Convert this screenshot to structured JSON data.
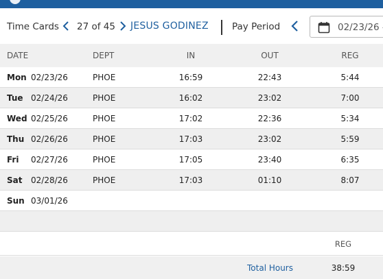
{
  "header": {
    "title": "Time Cards",
    "counter": "27 of 45",
    "employee_name": "JESUS GODINEZ",
    "pay_period_label": "Pay Period",
    "period_date": "02/23/26 -"
  },
  "table": {
    "columns": [
      "DATE",
      "DEPT",
      "IN",
      "OUT",
      "REG"
    ],
    "rows": [
      {
        "day": "Mon",
        "date": "02/23/26",
        "dept": "PHOE",
        "in": "16:59",
        "out": "22:43",
        "reg": "5:44"
      },
      {
        "day": "Tue",
        "date": "02/24/26",
        "dept": "PHOE",
        "in": "16:02",
        "out": "23:02",
        "reg": "7:00"
      },
      {
        "day": "Wed",
        "date": "02/25/26",
        "dept": "PHOE",
        "in": "17:02",
        "out": "22:36",
        "reg": "5:34"
      },
      {
        "day": "Thu",
        "date": "02/26/26",
        "dept": "PHOE",
        "in": "17:03",
        "out": "23:02",
        "reg": "5:59"
      },
      {
        "day": "Fri",
        "date": "02/27/26",
        "dept": "PHOE",
        "in": "17:05",
        "out": "23:40",
        "reg": "6:35"
      },
      {
        "day": "Sat",
        "date": "02/28/26",
        "dept": "PHOE",
        "in": "17:03",
        "out": "01:10",
        "reg": "8:07"
      },
      {
        "day": "Sun",
        "date": "03/01/26",
        "dept": "",
        "in": "",
        "out": "",
        "reg": ""
      }
    ]
  },
  "totals": {
    "column_label": "REG",
    "label": "Total Hours",
    "value": "38:59"
  },
  "colors": {
    "brand": "#1e5f9f",
    "row_alt": "#efefef"
  },
  "icons": {
    "prev_card": "chevron-left-icon",
    "next_card": "chevron-right-icon",
    "prev_period": "chevron-left-icon",
    "calendar": "calendar-icon"
  }
}
